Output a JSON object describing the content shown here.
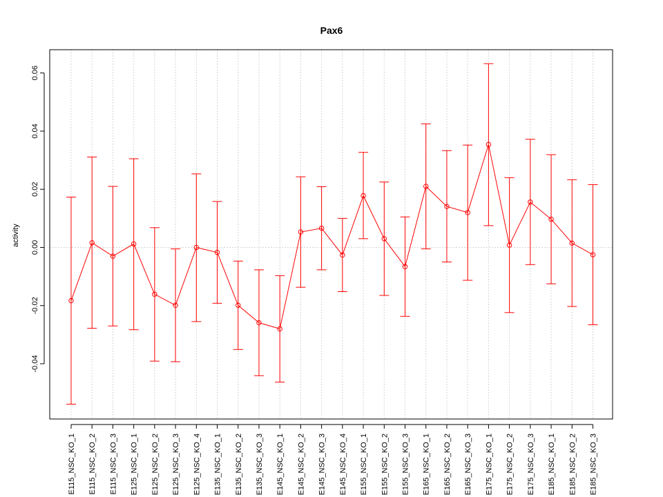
{
  "chart_data": {
    "type": "line",
    "title": "Pax6",
    "xlabel": "",
    "ylabel": "activity",
    "ylim": [
      -0.059,
      0.068
    ],
    "yticks": [
      -0.04,
      -0.02,
      0.0,
      0.02,
      0.04,
      0.06
    ],
    "ytick_labels": [
      "-0.04",
      "-0.02",
      "0.00",
      "0.02",
      "0.04",
      "0.06"
    ],
    "grid": true,
    "color": "#ff0000",
    "categories": [
      "E115_NSC_KO_1",
      "E115_NSC_KO_2",
      "E115_NSC_KO_3",
      "E125_NSC_KO_1",
      "E125_NSC_KO_2",
      "E125_NSC_KO_3",
      "E125_NSC_KO_4",
      "E135_NSC_KO_1",
      "E135_NSC_KO_2",
      "E135_NSC_KO_3",
      "E145_NSC_KO_1",
      "E145_NSC_KO_2",
      "E145_NSC_KO_3",
      "E145_NSC_KO_4",
      "E155_NSC_KO_1",
      "E155_NSC_KO_2",
      "E155_NSC_KO_3",
      "E165_NSC_KO_1",
      "E165_NSC_KO_2",
      "E165_NSC_KO_3",
      "E175_NSC_KO_1",
      "E175_NSC_KO_2",
      "E175_NSC_KO_3",
      "E185_NSC_KO_1",
      "E185_NSC_KO_2",
      "E185_NSC_KO_3"
    ],
    "values": [
      -0.0183,
      0.0016,
      -0.003,
      0.0012,
      -0.0161,
      -0.0199,
      0.0,
      -0.0017,
      -0.0199,
      -0.0259,
      -0.028,
      0.0053,
      0.0066,
      -0.0026,
      0.0178,
      0.003,
      -0.0066,
      0.021,
      0.0141,
      0.012,
      0.0354,
      0.0008,
      0.0156,
      0.0097,
      0.0015,
      -0.0025
    ],
    "upper": [
      0.0173,
      0.0311,
      0.021,
      0.0305,
      0.0068,
      -0.0005,
      0.0253,
      0.0158,
      -0.0047,
      -0.0077,
      -0.0097,
      0.0243,
      0.0209,
      0.01,
      0.0327,
      0.0225,
      0.0105,
      0.0425,
      0.0333,
      0.0352,
      0.0632,
      0.024,
      0.0372,
      0.0319,
      0.0233,
      0.0216
    ],
    "lower": [
      -0.0539,
      -0.0278,
      -0.027,
      -0.0283,
      -0.0391,
      -0.0393,
      -0.0255,
      -0.0192,
      -0.0351,
      -0.0441,
      -0.0463,
      -0.0137,
      -0.0077,
      -0.0152,
      0.003,
      -0.0165,
      -0.0237,
      -0.0005,
      -0.005,
      -0.0113,
      0.0075,
      -0.0224,
      -0.0059,
      -0.0125,
      -0.0203,
      -0.0266
    ]
  }
}
